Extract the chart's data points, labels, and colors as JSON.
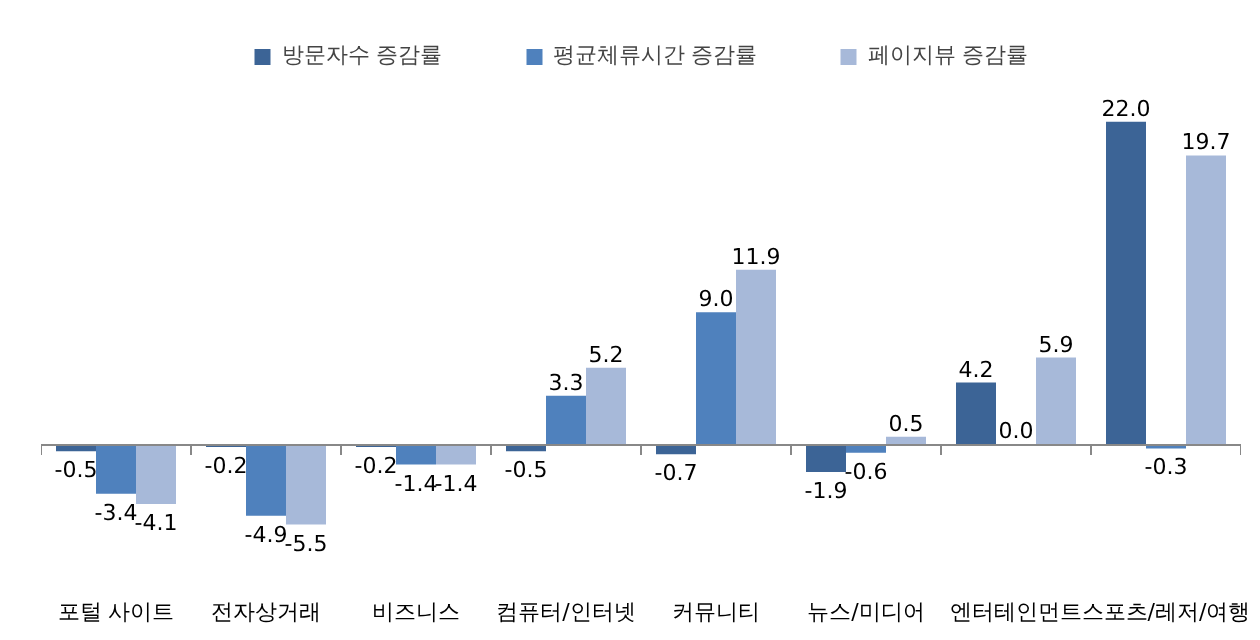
{
  "chart_data": {
    "type": "bar",
    "legend": "top",
    "categories": [
      "포털 사이트",
      "전자상거래",
      "비즈니스",
      "컴퓨터/인터넷",
      "커뮤니티",
      "뉴스/미디어",
      "엔터테인먼트",
      "스포츠/레저/여행"
    ],
    "series": [
      {
        "name": "방문자수 증감률",
        "color": "#3c6496",
        "values": [
          -0.5,
          -0.2,
          -0.2,
          -0.5,
          -0.7,
          -1.9,
          4.2,
          22
        ],
        "value_labels": [
          "-0.5",
          "-0.2",
          "-0.2",
          "-0.5",
          "-0.7",
          "-1.9",
          "4.2",
          "22.0"
        ]
      },
      {
        "name": "평균체류시간 증감률",
        "color": "#4f81bd",
        "values": [
          -3.4,
          -4.9,
          -1.4,
          3.3,
          9,
          -0.6,
          0,
          -0.3
        ],
        "value_labels": [
          "-3.4",
          "-4.9",
          "-1.4",
          "3.3",
          "9.0",
          "-0.6",
          "0.0",
          "-0.3"
        ]
      },
      {
        "name": "페이지뷰 증감률",
        "color": "#a7b9d9",
        "values": [
          -4.1,
          -5.5,
          -1.4,
          5.2,
          11.9,
          0.5,
          5.9,
          19.7
        ],
        "value_labels": [
          "-4.1",
          "-5.5",
          "-1.4",
          "5.2",
          "11.9",
          "0.5",
          "5.9",
          "19.7"
        ]
      }
    ]
  }
}
